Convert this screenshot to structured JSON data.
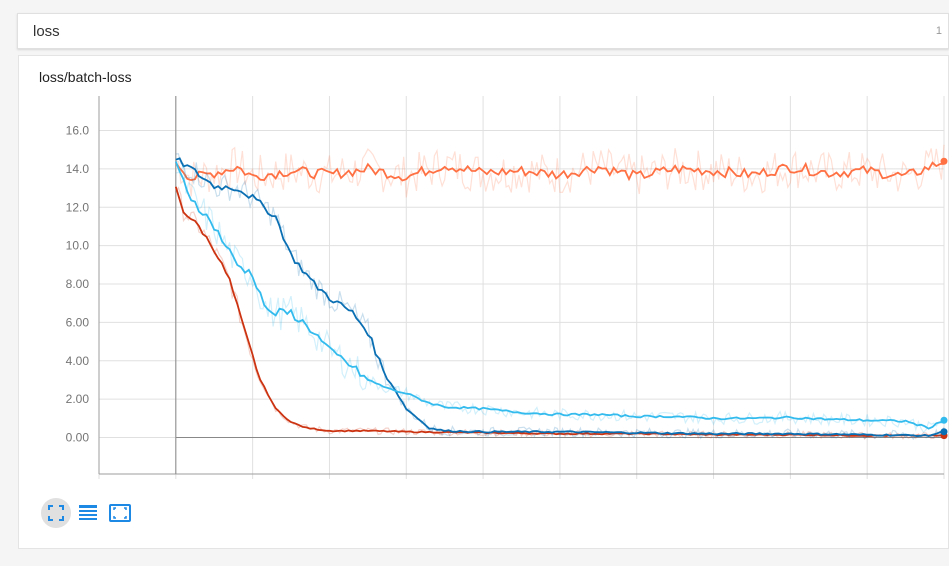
{
  "header": {
    "title": "loss",
    "count": "1"
  },
  "card": {
    "chart_title": "loss/batch-loss"
  },
  "toolbar": [
    {
      "name": "expand-icon",
      "active": true
    },
    {
      "name": "data-table-icon",
      "active": false
    },
    {
      "name": "fit-domain-icon",
      "active": false
    }
  ],
  "colors": {
    "orange": "#ff7043",
    "red": "#cc3311",
    "dark_blue": "#0a6fb3",
    "light_blue": "#33bbee",
    "grid": "#e0e0e0",
    "axis": "#9e9e9e",
    "tick_text": "#757575"
  },
  "chart_data": {
    "type": "line",
    "title": "loss/batch-loss",
    "xlabel": "",
    "ylabel": "",
    "ylim": [
      -1.9,
      17.8
    ],
    "xlim": [
      -0.1,
      1.0
    ],
    "yticks": [
      "16.0",
      "14.0",
      "12.0",
      "10.0",
      "8.00",
      "6.00",
      "4.00",
      "2.00",
      "0.00"
    ],
    "grid": true,
    "legend": "none",
    "series": [
      {
        "color": "#ff7043",
        "x": [
          0,
          0.02,
          0.05,
          0.08,
          0.1,
          0.15,
          0.2,
          0.25,
          0.3,
          0.35,
          0.4,
          0.45,
          0.5,
          0.55,
          0.6,
          0.65,
          0.7,
          0.75,
          0.8,
          0.85,
          0.9,
          0.95,
          1.0
        ],
        "y": [
          14.4,
          13.5,
          13.8,
          14.1,
          13.6,
          13.9,
          13.7,
          14.0,
          13.6,
          14.2,
          13.8,
          13.9,
          13.7,
          14.1,
          13.6,
          14.0,
          13.9,
          13.7,
          14.1,
          13.8,
          13.9,
          13.6,
          14.4
        ]
      },
      {
        "color": "#cc3311",
        "x": [
          0,
          0.01,
          0.03,
          0.05,
          0.07,
          0.09,
          0.11,
          0.13,
          0.15,
          0.17,
          0.2,
          0.25,
          0.3,
          0.4,
          0.5,
          0.6,
          0.7,
          0.8,
          0.9,
          1.0
        ],
        "y": [
          13.0,
          11.8,
          11.0,
          9.8,
          8.2,
          5.5,
          3.0,
          1.5,
          0.8,
          0.5,
          0.35,
          0.35,
          0.3,
          0.25,
          0.2,
          0.2,
          0.15,
          0.15,
          0.1,
          0.1
        ]
      },
      {
        "color": "#0a6fb3",
        "x": [
          0,
          0.02,
          0.05,
          0.08,
          0.1,
          0.13,
          0.15,
          0.18,
          0.2,
          0.23,
          0.25,
          0.27,
          0.3,
          0.33,
          0.35,
          0.4,
          0.5,
          0.6,
          0.7,
          0.8,
          0.9,
          0.98,
          1.0
        ],
        "y": [
          14.5,
          14.0,
          13.1,
          13.0,
          12.5,
          11.5,
          9.5,
          8.0,
          7.3,
          6.5,
          5.5,
          3.5,
          1.5,
          0.5,
          0.35,
          0.3,
          0.3,
          0.25,
          0.2,
          0.2,
          0.15,
          0.1,
          0.3
        ]
      },
      {
        "color": "#33bbee",
        "x": [
          0,
          0.02,
          0.05,
          0.08,
          0.1,
          0.12,
          0.15,
          0.18,
          0.2,
          0.22,
          0.25,
          0.28,
          0.3,
          0.33,
          0.35,
          0.4,
          0.45,
          0.5,
          0.55,
          0.6,
          0.65,
          0.7,
          0.75,
          0.8,
          0.85,
          0.9,
          0.95,
          0.98,
          1.0
        ],
        "y": [
          14.2,
          12.5,
          11.0,
          9.0,
          8.5,
          6.5,
          6.5,
          5.5,
          4.5,
          4.0,
          3.0,
          2.5,
          2.3,
          1.8,
          1.6,
          1.5,
          1.3,
          1.2,
          1.2,
          1.1,
          1.1,
          1.0,
          1.0,
          1.05,
          0.95,
          0.9,
          0.85,
          0.5,
          0.9
        ]
      }
    ]
  }
}
